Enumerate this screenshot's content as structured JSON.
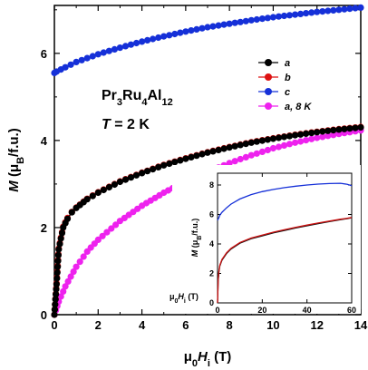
{
  "chart_data": [
    {
      "type": "scatter",
      "xlim": [
        0,
        14
      ],
      "ylim": [
        0,
        7.1
      ],
      "xticks": [
        0,
        2,
        4,
        6,
        8,
        10,
        12,
        14
      ],
      "yticks": [
        0,
        2,
        4,
        6
      ],
      "xlabel": {
        "main": "μ",
        "sub1": "0",
        "mid": "H",
        "sub2": "i",
        "unit": " (T)"
      },
      "ylabel": {
        "main": "M",
        "unit": " (μ",
        "sub": "B",
        "rest": "/f.u.)"
      },
      "annotations": [
        {
          "parts": [
            "Pr",
            "3",
            "Ru",
            "4",
            "Al",
            "12"
          ],
          "kind": "formula"
        },
        {
          "parts": [
            "T",
            " = 2 K"
          ],
          "kind": "temperature"
        }
      ],
      "legend_position": "upper-right",
      "series": [
        {
          "name": "a",
          "color": "#000000",
          "marker": "circle",
          "line": true,
          "x": [
            0,
            0.1,
            0.2,
            0.4,
            0.6,
            0.8,
            1.0,
            1.5,
            2,
            3,
            4,
            5,
            6,
            7,
            8,
            9,
            10,
            11,
            12,
            13,
            14
          ],
          "y": [
            0,
            0.7,
            1.5,
            2.0,
            2.2,
            2.35,
            2.45,
            2.65,
            2.8,
            3.05,
            3.25,
            3.43,
            3.58,
            3.72,
            3.84,
            3.95,
            4.04,
            4.12,
            4.19,
            4.25,
            4.3
          ]
        },
        {
          "name": "b",
          "color": "#dd1111",
          "marker": "circle",
          "line": true,
          "x": [
            0,
            0.1,
            0.2,
            0.4,
            0.6,
            0.8,
            1.0,
            1.5,
            2,
            3,
            4,
            5,
            6,
            7,
            8,
            9,
            10,
            11,
            12,
            13,
            14
          ],
          "y": [
            0,
            0.72,
            1.52,
            2.02,
            2.22,
            2.36,
            2.46,
            2.66,
            2.81,
            3.06,
            3.26,
            3.44,
            3.59,
            3.73,
            3.85,
            3.96,
            4.05,
            4.13,
            4.2,
            4.26,
            4.31
          ]
        },
        {
          "name": "c",
          "color": "#1530d8",
          "marker": "circle",
          "line": true,
          "x": [
            0,
            0.1,
            0.3,
            0.5,
            1,
            2,
            3,
            4,
            5,
            6,
            7,
            8,
            9,
            10,
            11,
            12,
            13,
            14
          ],
          "y": [
            5.55,
            5.58,
            5.63,
            5.68,
            5.8,
            5.98,
            6.13,
            6.27,
            6.39,
            6.5,
            6.6,
            6.68,
            6.76,
            6.83,
            6.89,
            6.95,
            7.0,
            7.05
          ]
        },
        {
          "name": "a, 8 K",
          "color": "#ee22ee",
          "marker": "circle",
          "line": true,
          "x": [
            0,
            0.2,
            0.5,
            1,
            1.5,
            2,
            3,
            4,
            5,
            6,
            7,
            8,
            9,
            10,
            11,
            12,
            13,
            14
          ],
          "y": [
            0,
            0.3,
            0.65,
            1.1,
            1.45,
            1.72,
            2.15,
            2.5,
            2.8,
            3.06,
            3.28,
            3.48,
            3.66,
            3.82,
            3.95,
            4.06,
            4.15,
            4.23
          ]
        }
      ]
    },
    {
      "type": "line",
      "role": "inset",
      "xlim": [
        0,
        60
      ],
      "ylim": [
        0,
        8.8
      ],
      "xticks": [
        0,
        20,
        40,
        60
      ],
      "yticks": [
        0,
        2,
        4,
        6,
        8
      ],
      "xlabel": {
        "main": "μ",
        "sub1": "0",
        "mid": "H",
        "sub2": "i",
        "unit": " (T)"
      },
      "ylabel": {
        "main": "M",
        "unit": " (μ",
        "sub": "B",
        "rest": "/f.u.)"
      },
      "series": [
        {
          "name": "c",
          "color": "#1530d8",
          "x": [
            0,
            0.5,
            1,
            2,
            4,
            6,
            10,
            15,
            20,
            25,
            30,
            35,
            40,
            45,
            50,
            55,
            58,
            60
          ],
          "y": [
            5.6,
            5.75,
            5.95,
            6.15,
            6.45,
            6.7,
            7.05,
            7.35,
            7.55,
            7.7,
            7.82,
            7.92,
            8.0,
            8.06,
            8.1,
            8.12,
            8.05,
            7.95
          ]
        },
        {
          "name": "a",
          "color": "#111111",
          "x": [
            0,
            0.3,
            0.6,
            1,
            2,
            4,
            6,
            10,
            15,
            20,
            25,
            30,
            35,
            40,
            45,
            50,
            55,
            58,
            60
          ],
          "y": [
            0,
            1.5,
            2.1,
            2.5,
            2.9,
            3.35,
            3.65,
            4.05,
            4.35,
            4.55,
            4.75,
            4.92,
            5.08,
            5.23,
            5.38,
            5.52,
            5.65,
            5.72,
            5.78
          ]
        },
        {
          "name": "b",
          "color": "#cc1111",
          "x": [
            0,
            0.3,
            0.6,
            1,
            2,
            4,
            6,
            10,
            15,
            20,
            25,
            30,
            35,
            40,
            45,
            50,
            55,
            58,
            60
          ],
          "y": [
            0,
            1.55,
            2.15,
            2.55,
            2.95,
            3.4,
            3.7,
            4.1,
            4.4,
            4.6,
            4.8,
            4.97,
            5.13,
            5.28,
            5.42,
            5.55,
            5.68,
            5.74,
            5.8
          ]
        }
      ]
    }
  ]
}
